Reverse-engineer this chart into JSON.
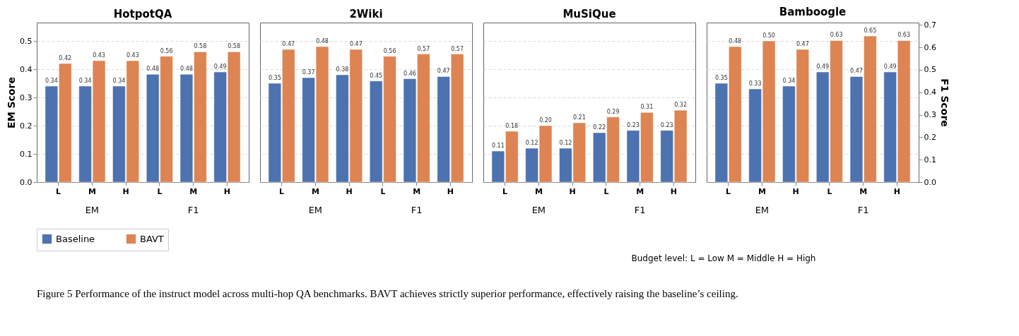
{
  "chart_data": [
    {
      "type": "bar",
      "title": "HotpotQA",
      "ylabel": "EM Score",
      "categories": [
        "L",
        "M",
        "H",
        "L",
        "M",
        "H"
      ],
      "ylim": [
        0,
        0.565
      ],
      "yticks": [
        {
          "value": 0,
          "label": "0.0"
        },
        0.1,
        0.2,
        0.3,
        0.4,
        0.5
      ],
      "grid": "y",
      "legend": "bottom",
      "annotations": [
        "EM",
        "F1",
        "Figure 5 Performance of the instruct model across multi-hop QA benchmarks. BAVT achieves strictly superior performance, effectively raising the baseline’s ceiling."
      ],
      "series": [
        {
          "name": "Baseline",
          "color": "#4c72b0",
          "values": [
            0.34,
            0.34,
            0.34,
            null,
            null,
            null
          ],
          "value_labels": [
            "0.34",
            "0.34",
            "0.34",
            null,
            null,
            null
          ]
        },
        {
          "name": "BAVT",
          "color": "#dd8452",
          "values": [
            0.42,
            0.43,
            0.43,
            null,
            null,
            null
          ],
          "value_labels": [
            "0.42",
            "0.43",
            "0.43",
            null,
            null,
            null
          ]
        },
        {
          "color": "#4c72b0",
          "axis": "y2",
          "values": [
            null,
            null,
            null,
            0.48,
            0.48,
            0.49
          ],
          "value_labels": [
            null,
            null,
            null,
            "0.48",
            "0.48",
            "0.49"
          ]
        },
        {
          "color": "#dd8452",
          "axis": "y2",
          "values": [
            null,
            null,
            null,
            0.56,
            0.58,
            0.58
          ],
          "value_labels": [
            null,
            null,
            null,
            "0.56",
            "0.58",
            "0.58"
          ]
        }
      ]
    },
    {
      "type": "bar",
      "title": "2Wiki",
      "categories": [
        "L",
        "M",
        "H",
        "L",
        "M",
        "H"
      ],
      "ylim": [
        0,
        0.565
      ],
      "tick_labels": "x",
      "grid": "y",
      "annotations": [
        "EM",
        "F1"
      ],
      "series": [
        {
          "color": "#4c72b0",
          "values": [
            0.35,
            0.37,
            0.38,
            null,
            null,
            null
          ],
          "value_labels": [
            "0.35",
            "0.37",
            "0.38",
            null,
            null,
            null
          ]
        },
        {
          "color": "#dd8452",
          "values": [
            0.47,
            0.48,
            0.47,
            null,
            null,
            null
          ],
          "value_labels": [
            "0.47",
            "0.48",
            "0.47",
            null,
            null,
            null
          ]
        },
        {
          "color": "#4c72b0",
          "axis": "y2",
          "values": [
            null,
            null,
            null,
            0.45,
            0.46,
            0.47
          ],
          "value_labels": [
            null,
            null,
            null,
            "0.45",
            "0.46",
            "0.47"
          ]
        },
        {
          "color": "#dd8452",
          "axis": "y2",
          "values": [
            null,
            null,
            null,
            0.56,
            0.57,
            0.57
          ],
          "value_labels": [
            null,
            null,
            null,
            "0.56",
            "0.57",
            "0.57"
          ]
        }
      ]
    },
    {
      "type": "bar",
      "title": "MuSiQue",
      "categories": [
        "L",
        "M",
        "H",
        "L",
        "M",
        "H"
      ],
      "ylim": [
        0,
        0.565
      ],
      "tick_labels": "x",
      "grid": "y",
      "annotations": [
        "EM",
        "F1",
        "Budget level:  L = Low    M = Middle    H = High"
      ],
      "series": [
        {
          "color": "#4c72b0",
          "values": [
            0.11,
            0.12,
            0.12,
            null,
            null,
            null
          ],
          "value_labels": [
            "0.11",
            "0.12",
            "0.12",
            null,
            null,
            null
          ]
        },
        {
          "color": "#dd8452",
          "values": [
            0.18,
            0.2,
            0.21,
            null,
            null,
            null
          ],
          "value_labels": [
            "0.18",
            "0.20",
            "0.21",
            null,
            null,
            null
          ]
        },
        {
          "color": "#4c72b0",
          "axis": "y2",
          "values": [
            null,
            null,
            null,
            0.22,
            0.23,
            0.23
          ],
          "value_labels": [
            null,
            null,
            null,
            "0.22",
            "0.23",
            "0.23"
          ]
        },
        {
          "color": "#dd8452",
          "axis": "y2",
          "values": [
            null,
            null,
            null,
            0.29,
            0.31,
            0.32
          ],
          "value_labels": [
            null,
            null,
            null,
            "0.29",
            "0.31",
            "0.32"
          ]
        }
      ]
    },
    {
      "type": "bar",
      "title": "Bamboogle",
      "y2label": "F1 Score",
      "categories": [
        "L",
        "M",
        "H",
        "L",
        "M",
        "H"
      ],
      "ylim": [
        0,
        0.565
      ],
      "y2lim": [
        0,
        0.71
      ],
      "y2ticks": [
        {
          "value": 0,
          "label": "0.0"
        },
        0.1,
        0.2,
        0.3,
        0.4,
        0.5,
        0.6,
        0.7
      ],
      "tick_labels": "xy2",
      "grid": "y",
      "annotations": [
        "EM",
        "F1"
      ],
      "series": [
        {
          "color": "#4c72b0",
          "values": [
            0.35,
            0.33,
            0.34,
            null,
            null,
            null
          ],
          "value_labels": [
            "0.35",
            "0.33",
            "0.34",
            null,
            null,
            null
          ]
        },
        {
          "color": "#dd8452",
          "values": [
            0.48,
            0.5,
            0.47,
            null,
            null,
            null
          ],
          "value_labels": [
            "0.48",
            "0.50",
            "0.47",
            null,
            null,
            null
          ]
        },
        {
          "color": "#4c72b0",
          "axis": "y2",
          "values": [
            null,
            null,
            null,
            0.49,
            0.47,
            0.49
          ],
          "value_labels": [
            null,
            null,
            null,
            "0.49",
            "0.47",
            "0.49"
          ]
        },
        {
          "color": "#dd8452",
          "axis": "y2",
          "values": [
            null,
            null,
            null,
            0.63,
            0.65,
            0.63
          ],
          "value_labels": [
            null,
            null,
            null,
            "0.63",
            "0.65",
            "0.63"
          ]
        }
      ]
    }
  ]
}
